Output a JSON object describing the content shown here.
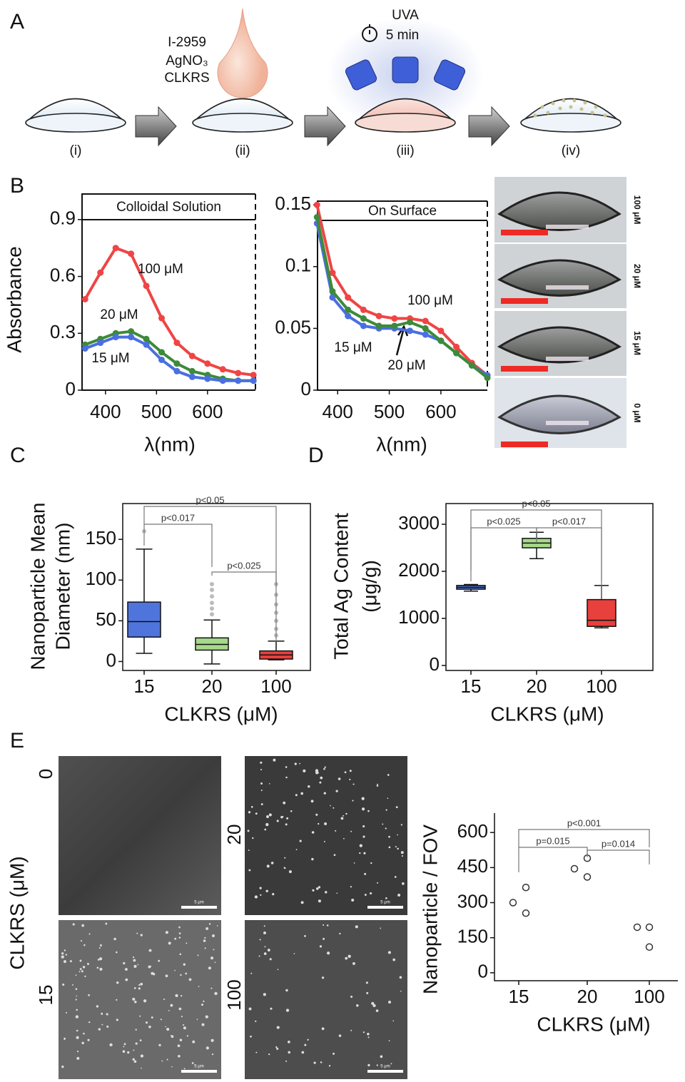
{
  "panel_labels": [
    "A",
    "B",
    "C",
    "D",
    "E"
  ],
  "scheme": {
    "drop": [
      "I-2959",
      "AgNO₃",
      "CLKRS"
    ],
    "uva": "UVA",
    "time": "5 min",
    "steps": [
      "(i)",
      "(ii)",
      "(iii)",
      "(iv)"
    ]
  },
  "photos": {
    "labels": [
      "100 μM",
      "20 μM",
      "15 μM",
      "0 μM"
    ]
  },
  "sem": {
    "ylabel": "CLKRS (μM)",
    "labels": [
      "0",
      "20",
      "15",
      "100"
    ],
    "scale_bar": "5 μm"
  },
  "chart_data": [
    {
      "type": "line",
      "title": "Colloidal Solution",
      "ylabel": "Absorbance",
      "xlabel": "λ(nm)",
      "x": [
        360,
        390,
        420,
        450,
        480,
        510,
        540,
        570,
        600,
        630,
        660,
        690
      ],
      "xlim": [
        354,
        694
      ],
      "xticks": [
        400,
        500,
        600
      ],
      "ylim": [
        0,
        1.035
      ],
      "yticks": [
        0,
        0.3,
        0.6,
        0.9
      ],
      "series": [
        {
          "name": "100 μM",
          "color": "#ef4545",
          "values": [
            0.48,
            0.62,
            0.75,
            0.72,
            0.55,
            0.38,
            0.25,
            0.18,
            0.14,
            0.11,
            0.09,
            0.08
          ]
        },
        {
          "name": "20 μM",
          "color": "#3d8a3a",
          "values": [
            0.24,
            0.27,
            0.3,
            0.31,
            0.27,
            0.2,
            0.14,
            0.1,
            0.08,
            0.06,
            0.05,
            0.05
          ]
        },
        {
          "name": "15 μM",
          "color": "#4a6fe0",
          "values": [
            0.22,
            0.25,
            0.28,
            0.28,
            0.24,
            0.16,
            0.1,
            0.07,
            0.06,
            0.05,
            0.05,
            0.05
          ]
        }
      ]
    },
    {
      "type": "line",
      "title": "On Surface",
      "xlabel": "λ(nm)",
      "x": [
        360,
        390,
        420,
        450,
        480,
        510,
        540,
        570,
        600,
        630,
        660,
        690
      ],
      "xlim": [
        361,
        690
      ],
      "xticks": [
        400,
        500,
        600
      ],
      "ylim": [
        0,
        0.153
      ],
      "yticks": [
        0,
        0.05,
        0.1,
        0.15
      ],
      "series": [
        {
          "name": "100 μM",
          "color": "#ef4545",
          "values": [
            0.15,
            0.095,
            0.075,
            0.065,
            0.06,
            0.058,
            0.058,
            0.056,
            0.048,
            0.035,
            0.022,
            0.012
          ]
        },
        {
          "name": "15 μM",
          "color": "#4a6fe0",
          "values": [
            0.135,
            0.075,
            0.06,
            0.052,
            0.05,
            0.05,
            0.048,
            0.045,
            0.04,
            0.03,
            0.02,
            0.012
          ]
        },
        {
          "name": "20 μM",
          "color": "#3d8a3a",
          "values": [
            0.14,
            0.08,
            0.065,
            0.058,
            0.052,
            0.052,
            0.055,
            0.05,
            0.04,
            0.03,
            0.02,
            0.01
          ]
        }
      ]
    },
    {
      "type": "box",
      "ylabel": [
        "Nanoparticle Mean",
        "Diameter (nm)"
      ],
      "xlabel": "CLKRS (μM)",
      "categories": [
        "15",
        "20",
        "100"
      ],
      "ylim": [
        -11,
        194
      ],
      "yticks": [
        0,
        50,
        100,
        150
      ],
      "boxes": [
        {
          "color": "#4f75dc",
          "min": 10,
          "q1": 30,
          "median": 49,
          "q3": 73,
          "max": 138,
          "outliers": [
            160
          ]
        },
        {
          "color": "#a6d98a",
          "min": -3,
          "q1": 14,
          "median": 21,
          "q3": 29,
          "max": 51,
          "outliers": [
            58,
            65,
            72,
            80,
            88,
            95
          ]
        },
        {
          "color": "#e8403d",
          "min": 2,
          "q1": 3,
          "median": 8,
          "q3": 13,
          "max": 25,
          "outliers": [
            32,
            40,
            50,
            60,
            70,
            82,
            95
          ]
        }
      ],
      "comparisons": [
        {
          "label": "p<0.05",
          "groups": [
            "15",
            "100"
          ]
        },
        {
          "label": "p<0.017",
          "groups": [
            "15",
            "20"
          ]
        },
        {
          "label": "p<0.025",
          "groups": [
            "20",
            "100"
          ]
        }
      ]
    },
    {
      "type": "box",
      "ylabel": [
        "Total Ag Content",
        "(μg/g)"
      ],
      "xlabel": "CLKRS (μM)",
      "categories": [
        "15",
        "20",
        "100"
      ],
      "ylim": [
        -106,
        3440
      ],
      "yticks": [
        0,
        1000,
        2000,
        3000
      ],
      "boxes": [
        {
          "color": "#4f75dc",
          "min": 1580,
          "q1": 1620,
          "median": 1660,
          "q3": 1700,
          "max": 1720,
          "outliers": []
        },
        {
          "color": "#a6d98a",
          "min": 2270,
          "q1": 2500,
          "median": 2600,
          "q3": 2700,
          "max": 2830,
          "outliers": []
        },
        {
          "color": "#e8403d",
          "min": 800,
          "q1": 830,
          "median": 960,
          "q3": 1400,
          "max": 1700,
          "outliers": []
        }
      ],
      "comparisons": [
        {
          "label": "p<0.05",
          "groups": [
            "15",
            "100"
          ]
        },
        {
          "label": "p<0.025",
          "groups": [
            "15",
            "20"
          ]
        },
        {
          "label": "p<0.017",
          "groups": [
            "20",
            "100"
          ]
        }
      ]
    },
    {
      "type": "strip",
      "ylabel": "Nanoparticle / FOV",
      "xlabel": "CLKRS (μM)",
      "categories": [
        "15",
        "20",
        "100"
      ],
      "ylim": [
        -34,
        683
      ],
      "yticks": [
        0,
        150,
        300,
        450,
        600
      ],
      "color": "#333333",
      "values": [
        [
          300,
          255,
          365
        ],
        [
          445,
          490,
          410
        ],
        [
          195,
          195,
          110
        ]
      ],
      "comparisons": [
        {
          "label": "p<0.001",
          "groups": [
            "15",
            "100"
          ]
        },
        {
          "label": "p=0.015",
          "groups": [
            "15",
            "20"
          ]
        },
        {
          "label": "p=0.014",
          "groups": [
            "20",
            "100"
          ]
        }
      ]
    }
  ]
}
